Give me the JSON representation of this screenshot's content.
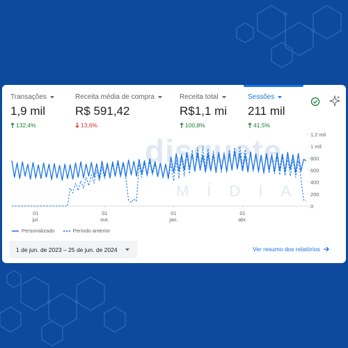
{
  "metrics": [
    {
      "label": "Transações",
      "value": "1,9 mil",
      "change": "132,4%",
      "direction": "up",
      "selected": false
    },
    {
      "label": "Receita média de compra",
      "value": "R$ 591,42",
      "change": "13,6%",
      "direction": "down",
      "selected": false
    },
    {
      "label": "Receita total",
      "value": "R$1,1 mi",
      "change": "100,8%",
      "direction": "up",
      "selected": false
    },
    {
      "label": "Sessões",
      "value": "211 mil",
      "change": "41,5%",
      "direction": "up",
      "selected": true
    }
  ],
  "chart_data": {
    "type": "line",
    "ylim": [
      0,
      1200
    ],
    "yticks": [
      0,
      200,
      400,
      600,
      800,
      {
        "value": 1000,
        "label": "1 mil"
      },
      {
        "value": 1200,
        "label": "1,2 mil"
      }
    ],
    "categories": [
      null,
      null,
      null,
      null,
      null,
      null,
      null,
      null,
      null,
      "01\njul.",
      null,
      null,
      null,
      null,
      null,
      null,
      null,
      null,
      null,
      null,
      null,
      null,
      null,
      null,
      null,
      null,
      null,
      null,
      null,
      null,
      null,
      null,
      null,
      null,
      null,
      "01\nout.",
      null,
      null,
      null,
      null,
      null,
      null,
      null,
      null,
      null,
      null,
      null,
      null,
      null,
      null,
      null,
      null,
      null,
      null,
      null,
      null,
      null,
      null,
      null,
      null,
      null,
      "01\njan.",
      null,
      null,
      null,
      null,
      null,
      null,
      null,
      null,
      null,
      null,
      null,
      null,
      null,
      null,
      null,
      null,
      null,
      null,
      null,
      null,
      null,
      null,
      null,
      null,
      null,
      "01\nabr.",
      null,
      null,
      null,
      null,
      null,
      null,
      null,
      null,
      null,
      null,
      null,
      null,
      null,
      null,
      null,
      null,
      null,
      null,
      null,
      null,
      null,
      null,
      null,
      null
    ],
    "series": [
      {
        "name": "Personalizado",
        "color": "#1a73e8",
        "style": "solid",
        "values": [
          760,
          480,
          720,
          460,
          740,
          500,
          700,
          450,
          730,
          470,
          690,
          460,
          720,
          480,
          700,
          440,
          710,
          470,
          680,
          430,
          700,
          460,
          690,
          450,
          720,
          480,
          740,
          470,
          700,
          500,
          730,
          480,
          710,
          460,
          750,
          490,
          720,
          470,
          740,
          500,
          760,
          510,
          730,
          490,
          770,
          520,
          750,
          500,
          780,
          540,
          760,
          520,
          790,
          550,
          740,
          500,
          720,
          480,
          700,
          470,
          820,
          560,
          880,
          580,
          860,
          600,
          900,
          620,
          870,
          580,
          890,
          600,
          850,
          570,
          880,
          590,
          860,
          560,
          900,
          610,
          870,
          580,
          890,
          600,
          920,
          620,
          880,
          590,
          860,
          570,
          900,
          600,
          870,
          580,
          850,
          560,
          880,
          600,
          860,
          570,
          890,
          590,
          870,
          570,
          900,
          610,
          860,
          560,
          880,
          580,
          780,
          760
        ]
      },
      {
        "name": "Período anterior",
        "color": "#1a73e8",
        "style": "dashed",
        "values": [
          0,
          0,
          0,
          0,
          0,
          0,
          0,
          0,
          0,
          0,
          0,
          0,
          0,
          0,
          0,
          0,
          0,
          0,
          0,
          0,
          0,
          0,
          300,
          220,
          380,
          260,
          420,
          300,
          480,
          340,
          520,
          380,
          600,
          420,
          650,
          460,
          680,
          480,
          700,
          500,
          720,
          480,
          700,
          460,
          100,
          60,
          120,
          80,
          700,
          480,
          720,
          500,
          740,
          520,
          700,
          480,
          720,
          470,
          690,
          450,
          700,
          420,
          760,
          460,
          820,
          500,
          880,
          540,
          940,
          580,
          980,
          600,
          1000,
          620,
          960,
          600,
          920,
          580,
          880,
          560,
          900,
          560,
          940,
          600,
          980,
          620,
          1000,
          640,
          950,
          600,
          920,
          580,
          880,
          560,
          860,
          540,
          850,
          550,
          840,
          540,
          830,
          520,
          820,
          510,
          800,
          500,
          780,
          480,
          760,
          460,
          100,
          80
        ]
      }
    ]
  },
  "date_range": "1 de jun. de 2023 – 25 de jun. de 2024",
  "report_link": "Ver resumo dos relatórios",
  "watermark": {
    "name": "disquete",
    "tagline": "MÍDIA"
  }
}
